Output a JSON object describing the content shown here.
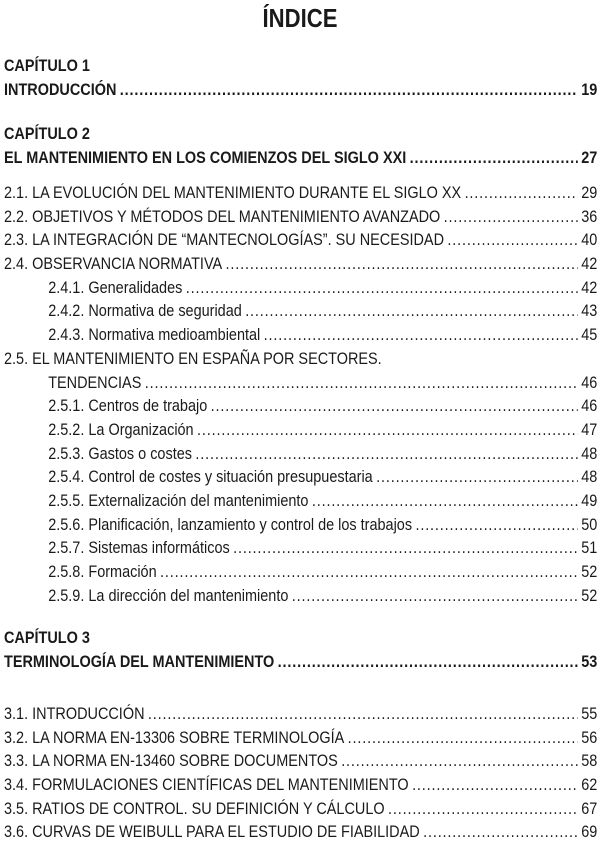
{
  "title": "ÍNDICE",
  "chapters": [
    {
      "label": "CAPÍTULO 1",
      "title": "INTRODUCCIÓN",
      "page": "19",
      "entries": []
    },
    {
      "label": "CAPÍTULO 2",
      "title": "EL MANTENIMIENTO EN LOS COMIENZOS DEL SIGLO XXI",
      "page": "27",
      "entries": [
        {
          "text": "2.1. LA EVOLUCIÓN DEL MANTENIMIENTO DURANTE EL SIGLO XX",
          "page": "29"
        },
        {
          "text": "2.2. OBJETIVOS Y MÉTODOS DEL MANTENIMIENTO AVANZADO",
          "page": "36"
        },
        {
          "text": "2.3. LA INTEGRACIÓN DE “MANTECNOLOGÍAS”. SU NECESIDAD",
          "page": "40"
        },
        {
          "text": "2.4. OBSERVANCIA NORMATIVA",
          "page": "42"
        },
        {
          "text": "2.4.1. Generalidades",
          "page": "42"
        },
        {
          "text": "2.4.2. Normativa de seguridad",
          "page": "43"
        },
        {
          "text": "2.4.3. Normativa medioambiental",
          "page": "45"
        },
        {
          "text": "2.5. EL MANTENIMIENTO EN ESPAÑA POR SECTORES.",
          "text2": "TENDENCIAS",
          "page": "46"
        },
        {
          "text": "2.5.1. Centros de trabajo",
          "page": "46"
        },
        {
          "text": "2.5.2. La Organización",
          "page": "47"
        },
        {
          "text": "2.5.3. Gastos o costes",
          "page": "48"
        },
        {
          "text": "2.5.4. Control de costes y situación presupuestaria",
          "page": "48"
        },
        {
          "text": "2.5.5. Externalización del mantenimiento",
          "page": "49"
        },
        {
          "text": "2.5.6. Planificación, lanzamiento y control de los trabajos",
          "page": "50"
        },
        {
          "text": "2.5.7. Sistemas informáticos",
          "page": "51"
        },
        {
          "text": "2.5.8. Formación",
          "page": "52"
        },
        {
          "text": "2.5.9. La dirección del mantenimiento",
          "page": "52"
        }
      ]
    },
    {
      "label": "CAPÍTULO 3",
      "title": "TERMINOLOGÍA DEL MANTENIMIENTO",
      "page": "53",
      "entries": [
        {
          "text": "3.1. INTRODUCCIÓN",
          "page": "55"
        },
        {
          "text": "3.2. LA NORMA EN-13306 SOBRE TERMINOLOGÍA",
          "page": "56"
        },
        {
          "text": "3.3. LA NORMA EN-13460 SOBRE DOCUMENTOS",
          "page": "58"
        },
        {
          "text": "3.4. FORMULACIONES CIENTÍFICAS DEL MANTENIMIENTO",
          "page": "62"
        },
        {
          "text": "3.5. RATIOS DE CONTROL. SU DEFINICIÓN Y CÁLCULO",
          "page": "67"
        },
        {
          "text": "3.6. CURVAS DE WEIBULL PARA EL ESTUDIO DE FIABILIDAD",
          "page": "69"
        }
      ]
    }
  ]
}
